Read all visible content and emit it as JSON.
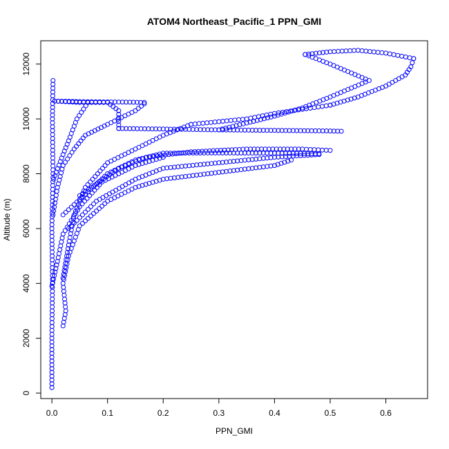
{
  "chart_data": {
    "type": "scatter",
    "title": "ATOM4 Northeast_Pacific_1 PPN_GMI",
    "xlabel": "PPN_GMI",
    "ylabel": "Altitude (m)",
    "xlim": [
      -0.02,
      0.675
    ],
    "ylim": [
      -200,
      12850
    ],
    "x_ticks": [
      0.0,
      0.1,
      0.2,
      0.3,
      0.4,
      0.5,
      0.6
    ],
    "x_tick_labels": [
      "0.0",
      "0.1",
      "0.2",
      "0.3",
      "0.4",
      "0.5",
      "0.6"
    ],
    "y_ticks": [
      0,
      2000,
      4000,
      6000,
      8000,
      10000,
      12000
    ],
    "y_tick_labels": [
      "0",
      "2000",
      "4000",
      "6000",
      "8000",
      "10000",
      "12000"
    ],
    "grid": false,
    "marker": "open-circle",
    "color": "#0000ff",
    "series": [
      {
        "segments": [
          [
            [
              0.0,
              200
            ],
            [
              0.0,
              2000
            ],
            [
              0.001,
              4000
            ],
            [
              0.0,
              6000
            ],
            [
              0.002,
              8000
            ],
            [
              0.001,
              10000
            ],
            [
              0.002,
              11400
            ]
          ],
          [
            [
              0.005,
              10650
            ],
            [
              0.05,
              10630
            ],
            [
              0.1,
              10620
            ],
            [
              0.14,
              10610
            ],
            [
              0.166,
              10600
            ]
          ],
          [
            [
              0.166,
              10550
            ],
            [
              0.15,
              10300
            ],
            [
              0.1,
              9800
            ],
            [
              0.06,
              9400
            ],
            [
              0.04,
              8900
            ],
            [
              0.02,
              8300
            ],
            [
              0.01,
              7500
            ],
            [
              0.002,
              6500
            ]
          ],
          [
            [
              0.005,
              10650
            ],
            [
              0.05,
              10600
            ],
            [
              0.1,
              10600
            ],
            [
              0.12,
              10300
            ],
            [
              0.12,
              9650
            ]
          ],
          [
            [
              0.12,
              9650
            ],
            [
              0.2,
              9630
            ],
            [
              0.3,
              9600
            ],
            [
              0.4,
              9580
            ],
            [
              0.5,
              9560
            ],
            [
              0.52,
              9550
            ]
          ],
          [
            [
              0.003,
              7800
            ],
            [
              0.02,
              8700
            ],
            [
              0.03,
              9200
            ],
            [
              0.045,
              10000
            ],
            [
              0.065,
              10600
            ]
          ],
          [
            [
              0.02,
              4200
            ],
            [
              0.03,
              5400
            ],
            [
              0.04,
              6500
            ],
            [
              0.06,
              7500
            ],
            [
              0.1,
              8400
            ],
            [
              0.15,
              8900
            ],
            [
              0.2,
              9400
            ],
            [
              0.25,
              9800
            ]
          ],
          [
            [
              0.25,
              9800
            ],
            [
              0.3,
              9900
            ],
            [
              0.35,
              10000
            ],
            [
              0.4,
              10200
            ],
            [
              0.45,
              10350
            ],
            [
              0.5,
              10500
            ]
          ],
          [
            [
              0.5,
              10500
            ],
            [
              0.55,
              10800
            ],
            [
              0.6,
              11200
            ],
            [
              0.635,
              11600
            ],
            [
              0.645,
              11900
            ],
            [
              0.65,
              12200
            ]
          ],
          [
            [
              0.65,
              12200
            ],
            [
              0.6,
              12400
            ],
            [
              0.55,
              12500
            ],
            [
              0.5,
              12450
            ],
            [
              0.455,
              12350
            ]
          ],
          [
            [
              0.455,
              12350
            ],
            [
              0.5,
              12000
            ],
            [
              0.57,
              11400
            ],
            [
              0.5,
              10800
            ],
            [
              0.45,
              10400
            ],
            [
              0.4,
              10100
            ],
            [
              0.35,
              9850
            ],
            [
              0.3,
              9600
            ]
          ],
          [
            [
              0.02,
              2450
            ],
            [
              0.025,
              3000
            ],
            [
              0.02,
              4000
            ],
            [
              0.03,
              5000
            ],
            [
              0.05,
              6100
            ],
            [
              0.1,
              7000
            ],
            [
              0.15,
              7500
            ],
            [
              0.2,
              7800
            ],
            [
              0.3,
              8050
            ],
            [
              0.4,
              8300
            ],
            [
              0.43,
              8500
            ]
          ],
          [
            [
              0.03,
              6000
            ],
            [
              0.08,
              7000
            ],
            [
              0.15,
              7800
            ],
            [
              0.2,
              8200
            ],
            [
              0.3,
              8400
            ],
            [
              0.4,
              8600
            ],
            [
              0.48,
              8700
            ]
          ],
          [
            [
              0.02,
              6500
            ],
            [
              0.1,
              8000
            ],
            [
              0.15,
              8500
            ],
            [
              0.2,
              8750
            ],
            [
              0.3,
              8760
            ],
            [
              0.4,
              8750
            ],
            [
              0.48,
              8730
            ]
          ],
          [
            [
              0.05,
              7200
            ],
            [
              0.12,
              8200
            ],
            [
              0.17,
              8600
            ],
            [
              0.25,
              8800
            ],
            [
              0.35,
              8900
            ],
            [
              0.45,
              8900
            ],
            [
              0.5,
              8850
            ]
          ],
          [
            [
              0.0,
              3900
            ],
            [
              0.01,
              4800
            ],
            [
              0.02,
              5800
            ],
            [
              0.05,
              6800
            ],
            [
              0.09,
              7700
            ],
            [
              0.15,
              8300
            ],
            [
              0.2,
              8600
            ]
          ]
        ]
      }
    ]
  }
}
